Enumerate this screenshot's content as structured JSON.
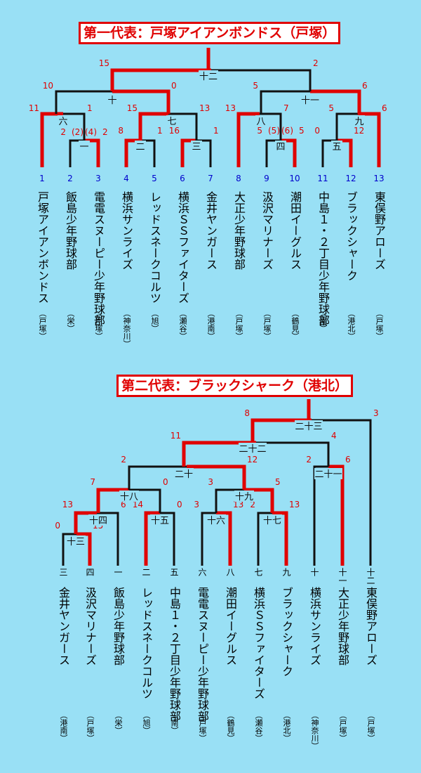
{
  "top": {
    "title": "第一代表：戸塚アイアンボンドス（戸塚）",
    "teams": [
      {
        "num": "1",
        "name": "戸塚アイアンボンドス",
        "area": "（戸塚）"
      },
      {
        "num": "2",
        "name": "飯島少年野球部",
        "area": "（栄）"
      },
      {
        "num": "3",
        "name": "電電スヌーピー少年野球部",
        "area": "（戸塚）"
      },
      {
        "num": "4",
        "name": "横浜サンライズ",
        "area": "（神奈川）"
      },
      {
        "num": "5",
        "name": "レッドスネークコルツ",
        "area": "（旭）"
      },
      {
        "num": "6",
        "name": "横浜ＳＳファイターズ",
        "area": "（瀬谷）"
      },
      {
        "num": "7",
        "name": "金井ヤンガース",
        "area": "（港南）"
      },
      {
        "num": "8",
        "name": "大正少年野球部",
        "area": "（戸塚）"
      },
      {
        "num": "9",
        "name": "汲沢マリナーズ",
        "area": "（戸塚）"
      },
      {
        "num": "10",
        "name": "潮田イーグルス",
        "area": "（鶴見）"
      },
      {
        "num": "11",
        "name": "中島１・２丁目少年野球部",
        "area": "（南）"
      },
      {
        "num": "12",
        "name": "ブラックシャーク",
        "area": "（港北）"
      },
      {
        "num": "13",
        "name": "東俣野アローズ",
        "area": "（戸塚）"
      }
    ],
    "games": [
      {
        "label": "一",
        "ls": "2",
        "rs": "2",
        "lp": "(2)",
        "rp": "(4)"
      },
      {
        "label": "二",
        "ls": "8",
        "rs": "1"
      },
      {
        "label": "三",
        "ls": "16",
        "rs": "1"
      },
      {
        "label": "四",
        "ls": "5",
        "rs": "5",
        "lp": "(5)",
        "rp": "(6)"
      },
      {
        "label": "五",
        "ls": "0",
        "rs": "12"
      },
      {
        "label": "六",
        "ls": "11",
        "rs": "1"
      },
      {
        "label": "七",
        "ls": "15",
        "rs": "13"
      },
      {
        "label": "八",
        "ls": "13",
        "rs": "7"
      },
      {
        "label": "九",
        "ls": "5",
        "rs": "6"
      },
      {
        "label": "十",
        "ls": "10",
        "rs": "0"
      },
      {
        "label": "十一",
        "ls": "5",
        "rs": "6"
      },
      {
        "label": "十二",
        "ls": "15",
        "rs": "2"
      }
    ]
  },
  "bottom": {
    "title": "第二代表：ブラックシャーク（港北）",
    "teams": [
      {
        "seed": "三",
        "name": "金井ヤンガース",
        "area": "（港南）"
      },
      {
        "seed": "四",
        "name": "汲沢マリナーズ",
        "area": "（戸塚）"
      },
      {
        "seed": "一",
        "name": "飯島少年野球部",
        "area": "（栄）"
      },
      {
        "seed": "二",
        "name": "レッドスネークコルツ",
        "area": "（旭）"
      },
      {
        "seed": "五",
        "name": "中島１・２丁目少年野球部",
        "area": "（南）"
      },
      {
        "seed": "六",
        "name": "電電スヌーピー少年野球部",
        "area": "（戸塚）"
      },
      {
        "seed": "八",
        "name": "潮田イーグルス",
        "area": "（鶴見）"
      },
      {
        "seed": "七",
        "name": "横浜ＳＳファイターズ",
        "area": "（瀬谷）"
      },
      {
        "seed": "九",
        "name": "ブラックシャーク",
        "area": "（港北）"
      },
      {
        "seed": "十",
        "name": "横浜サンライズ",
        "area": "（神奈川）"
      },
      {
        "seed": "十一",
        "name": "大正少年野球部",
        "area": "（戸塚）"
      },
      {
        "seed": "十二",
        "name": "東俣野アローズ",
        "area": "（戸塚）"
      }
    ],
    "games": [
      {
        "label": "十三",
        "ls": "0",
        "rs": "15"
      },
      {
        "label": "十四",
        "ls": "13",
        "rs": "6"
      },
      {
        "label": "十五",
        "ls": "14",
        "rs": "0"
      },
      {
        "label": "十六",
        "ls": "3",
        "rs": "13"
      },
      {
        "label": "十七",
        "ls": "2",
        "rs": "13"
      },
      {
        "label": "十八",
        "ls": "7",
        "rs": "0"
      },
      {
        "label": "十九",
        "ls": "3",
        "rs": "5"
      },
      {
        "label": "二十",
        "ls": "2",
        "rs": "12"
      },
      {
        "label": "二十一",
        "ls": "2",
        "rs": "6"
      },
      {
        "label": "二十二",
        "ls": "11",
        "rs": "4"
      },
      {
        "label": "二十三",
        "ls": "8",
        "rs": "3"
      }
    ]
  }
}
